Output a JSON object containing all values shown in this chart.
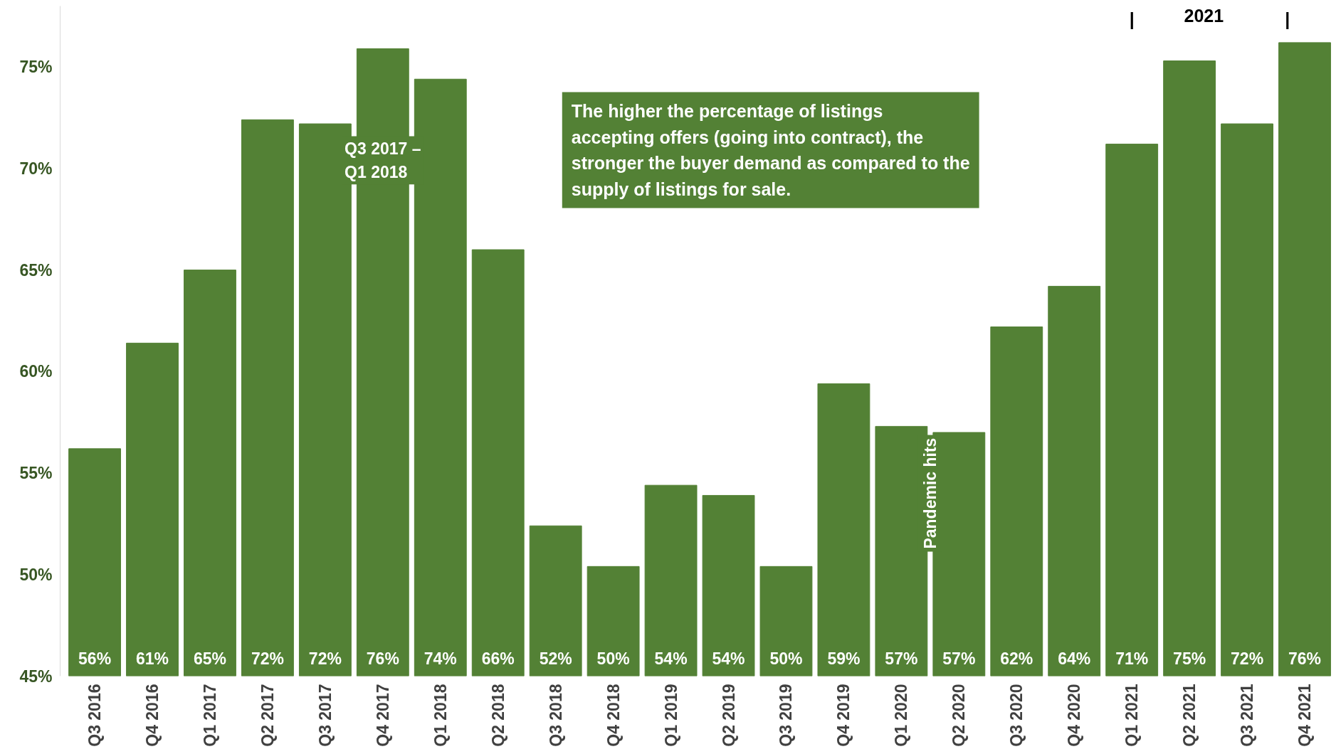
{
  "chart_data": {
    "type": "bar",
    "color": "#538135",
    "categories": [
      "Q3 2016",
      "Q4 2016",
      "Q1 2017",
      "Q2 2017",
      "Q3 2017",
      "Q4 2017",
      "Q1 2018",
      "Q2 2018",
      "Q3 2018",
      "Q4 2018",
      "Q1 2019",
      "Q2 2019",
      "Q3 2019",
      "Q4 2019",
      "Q1 2020",
      "Q2 2020",
      "Q3 2020",
      "Q4 2020",
      "Q1 2021",
      "Q2 2021",
      "Q3 2021",
      "Q4 2021"
    ],
    "values": [
      56.2,
      61.4,
      65.0,
      72.4,
      72.2,
      75.9,
      74.4,
      66.0,
      52.4,
      50.4,
      54.4,
      53.9,
      50.4,
      59.4,
      57.3,
      57.0,
      62.2,
      64.2,
      71.2,
      75.3,
      72.2,
      76.2
    ],
    "value_labels": [
      "56%",
      "61%",
      "65%",
      "72%",
      "72%",
      "76%",
      "74%",
      "66%",
      "52%",
      "50%",
      "54%",
      "54%",
      "50%",
      "59%",
      "57%",
      "57%",
      "62%",
      "64%",
      "71%",
      "75%",
      "72%",
      "76%"
    ],
    "ylim": [
      45,
      78
    ],
    "yticks": [
      {
        "value": 45,
        "label": "45%"
      },
      {
        "value": 50,
        "label": "50%"
      },
      {
        "value": 55,
        "label": "55%"
      },
      {
        "value": 60,
        "label": "60%"
      },
      {
        "value": 65,
        "label": "65%"
      },
      {
        "value": 70,
        "label": "70%"
      },
      {
        "value": 75,
        "label": "75%"
      }
    ],
    "grid": false,
    "annotations": [
      "The higher the percentage of listings accepting offers (going into contract), the stronger the buyer demand as compared to the supply of listings for sale.",
      "Q3 2017 –\nQ1 2018",
      "Pandemic hits",
      "|",
      "2021",
      "|"
    ]
  }
}
